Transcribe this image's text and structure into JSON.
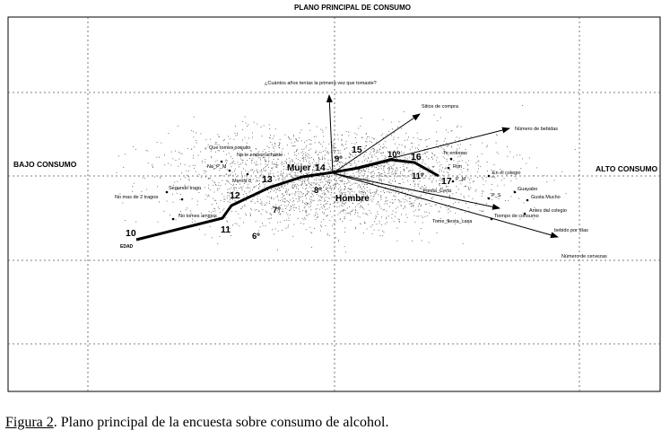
{
  "chart_data": {
    "type": "scatter",
    "title": "PLANO PRINCIPAL DE CONSUMO",
    "side_labels": {
      "left": "BAJO CONSUMO",
      "right": "ALTO CONSUMO"
    },
    "age_labels": [
      "10",
      "11",
      "12",
      "13",
      "14",
      "15",
      "16",
      "17"
    ],
    "grade_labels": [
      "6º",
      "7º",
      "8º",
      "9º",
      "10º",
      "11º"
    ],
    "sex_labels": [
      "Mujer",
      "Hombre"
    ],
    "origin_label": "EDAD",
    "variables": [
      "¿Cuántos años tenías la primera vez que tomaste?",
      "Sitios de compra",
      "Número de bebidas",
      "Te entonas",
      "Ron",
      "P_M",
      "En el colegio",
      "Guayabo",
      "P_S",
      "Gusta Mucho",
      "Fiesta_Certo",
      "Antes del colegio",
      "Tiempo de consumo",
      "Tome_fiesta_casa",
      "bebido por días",
      "Número de cervezas",
      "Que tomes poquito",
      "No te emborrachaste",
      "No_P_M",
      "Menos 8",
      "Segundo trago",
      "No mas de 2 tragos",
      "No tomes amigos"
    ]
  },
  "caption": {
    "label": "Figura 2",
    "text": ". Plano principal de la encuesta sobre consumo de alcohol."
  }
}
